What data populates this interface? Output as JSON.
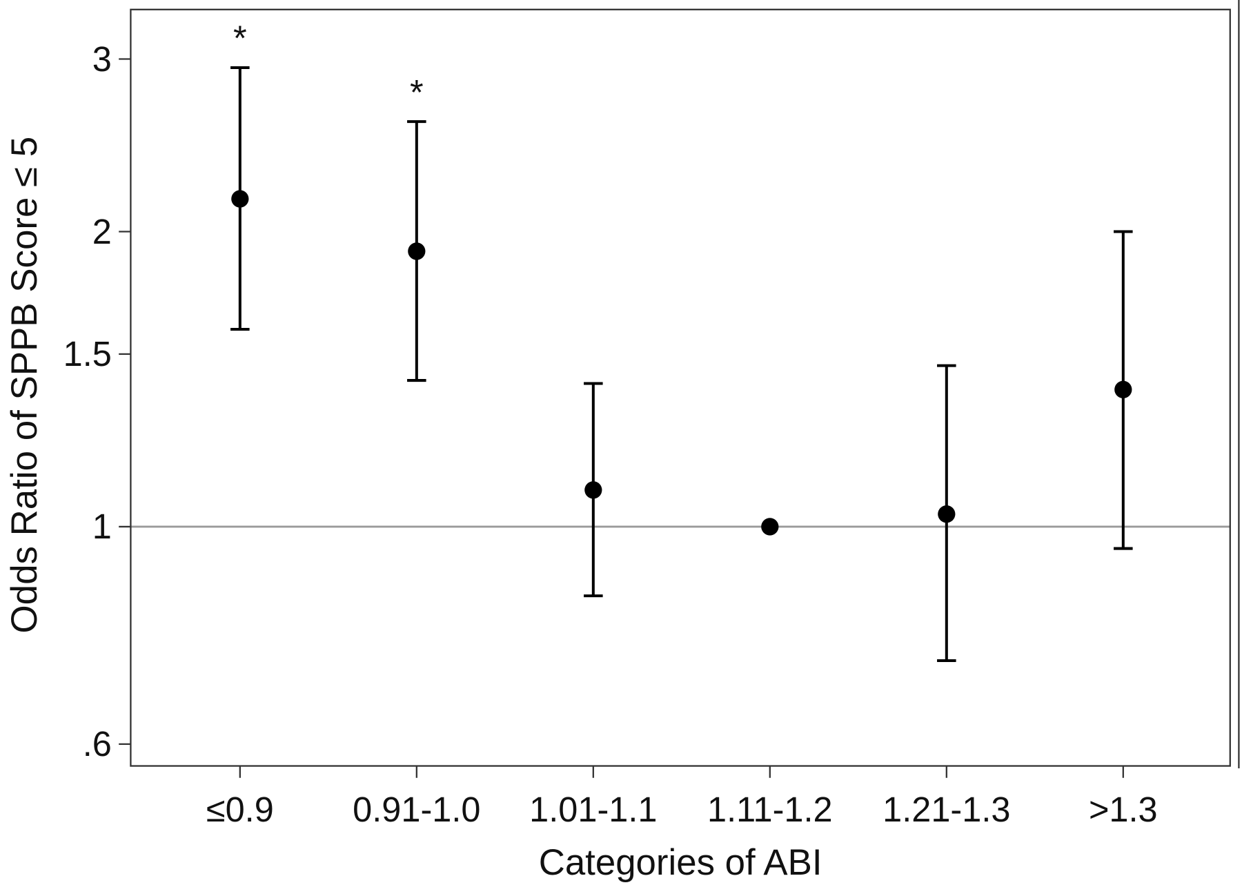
{
  "chart_data": {
    "type": "scatter",
    "categories": [
      "≤0.9",
      "0.91-1.0",
      "1.01-1.1",
      "1.11-1.2",
      "1.21-1.3",
      ">1.3"
    ],
    "series": [
      {
        "values": [
          2.16,
          1.91,
          1.09,
          1.0,
          1.03,
          1.38
        ],
        "lower": [
          1.59,
          1.41,
          0.85,
          null,
          0.73,
          0.95
        ],
        "upper": [
          2.94,
          2.59,
          1.4,
          null,
          1.46,
          2.0
        ],
        "marker": "circle"
      }
    ],
    "annotations": [
      "*",
      "*",
      "",
      "",
      "",
      ""
    ],
    "xlabel": "Categories of ABI",
    "ylabel": "Odds Ratio of SPPB Score ≤ 5",
    "yscale": "log",
    "ylim": [
      0.57,
      3.37
    ],
    "yticks": [
      3,
      2,
      1.5,
      1,
      0.6
    ],
    "ytick_labels": [
      "3",
      "2",
      "1.5",
      "1",
      ".6"
    ],
    "reference_line": {
      "y": 1
    },
    "grid": false,
    "legend": "none",
    "colors": {
      "points": "#000000",
      "axes": "#333333",
      "reference_line": "#999999",
      "text": "#111111"
    }
  }
}
